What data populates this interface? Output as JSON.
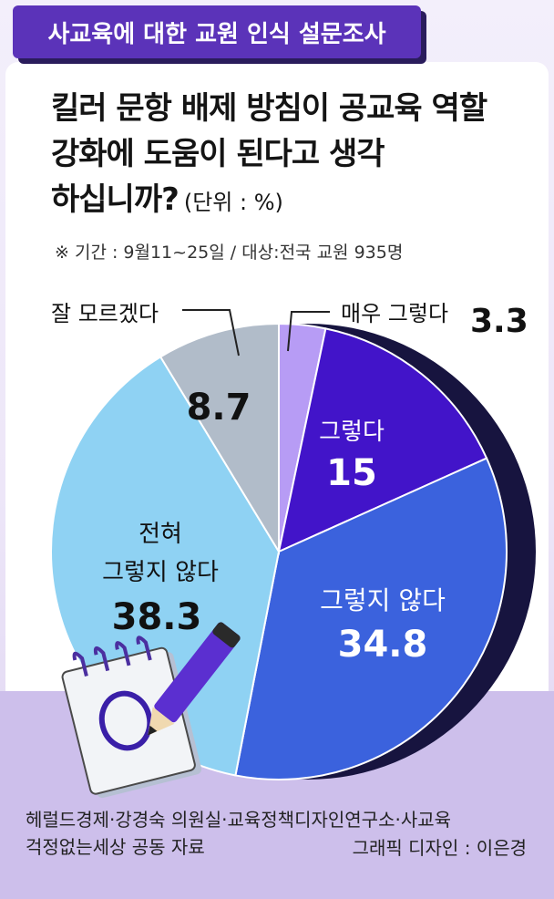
{
  "header": {
    "title": "사교육에 대한 교원 인식 설문조사"
  },
  "question": {
    "line1": "킬러 문항 배제 방침이 공교육 역할",
    "line2": "강화에 도움이 된다고 생각",
    "line3": "하십니까?",
    "unit": "(단위 : %)"
  },
  "period": "※ 기간 : 9월11~25일 / 대상:전국 교원 935명",
  "chart_data": {
    "type": "pie",
    "unit": "%",
    "slices": [
      {
        "label": "매우 그렇다",
        "value": 3.3,
        "color": "#b79cf5"
      },
      {
        "label": "그렇다",
        "value": 15,
        "color": "#4214c9"
      },
      {
        "label": "그렇지 않다",
        "value": 34.8,
        "color": "#3b62dd"
      },
      {
        "label": "전혀 그렇지 않다",
        "value": 38.3,
        "color": "#8fd2f3"
      },
      {
        "label": "잘 모르겠다",
        "value": 8.7,
        "color": "#b1bcc9"
      }
    ]
  },
  "labels": {
    "very_yes": {
      "name": "매우 그렇다",
      "value": "3.3"
    },
    "yes": {
      "name": "그렇다",
      "value": "15"
    },
    "no": {
      "name": "그렇지 않다",
      "value": "34.8"
    },
    "not_at_all": {
      "line1": "전혀",
      "line2": "그렇지 않다",
      "value": "38.3"
    },
    "dont_know": {
      "name": "잘 모르겠다",
      "value": "8.7"
    }
  },
  "source": {
    "line1": "헤럴드경제·강경숙 의원실·교육정책디자인연구소·사교육",
    "line2": "걱정없는세상 공동 자료"
  },
  "credit": "그래픽 디자인 : 이은경"
}
